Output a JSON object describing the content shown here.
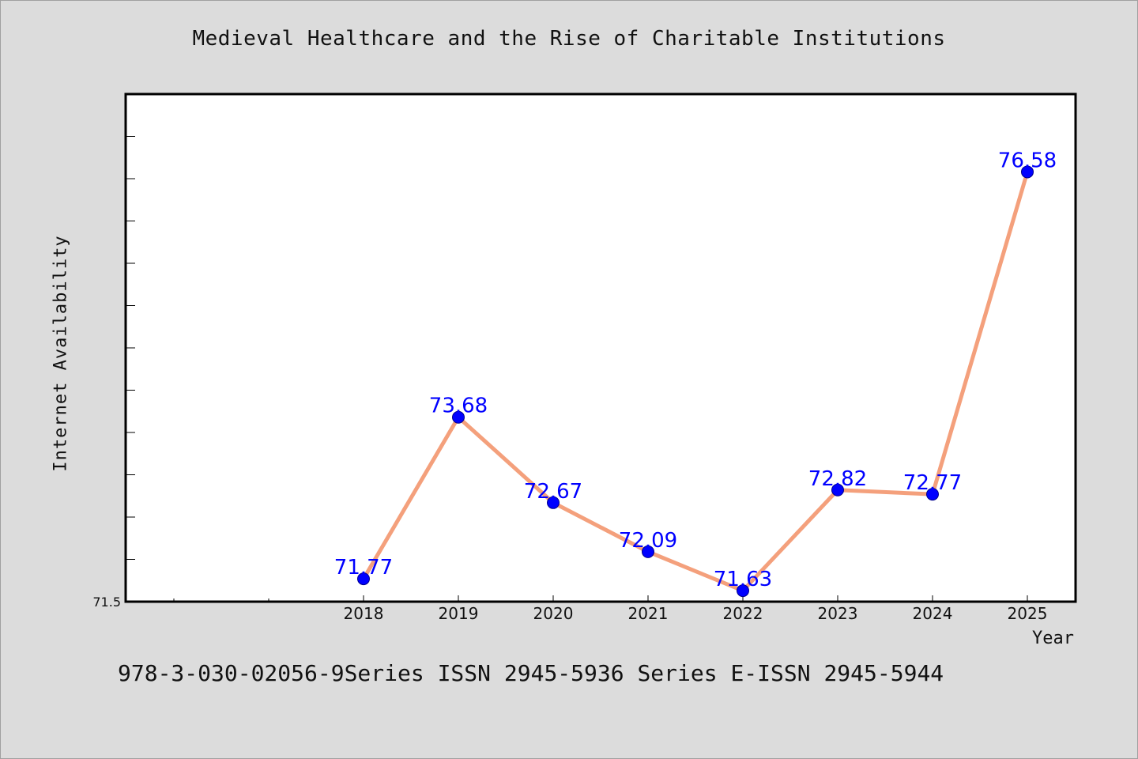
{
  "chart_data": {
    "type": "line",
    "title": "Medieval Healthcare and the Rise of Charitable Institutions",
    "xlabel": "Year",
    "ylabel": "Internet Availability",
    "categories": [
      "2018",
      "2019",
      "2020",
      "2021",
      "2022",
      "2023",
      "2024",
      "2025"
    ],
    "series": [
      {
        "values": [
          71.77,
          73.68,
          72.67,
          72.09,
          71.63,
          72.82,
          72.77,
          76.58
        ],
        "labels": [
          "71.77",
          "73.68",
          "72.67",
          "72.09",
          "71.63",
          "72.82",
          "72.77",
          "76.58"
        ]
      }
    ],
    "ylim": [
      71.5,
      77.5
    ],
    "y_tick_labels": [
      "71.5"
    ],
    "grid": false,
    "legend": "none",
    "colors": {
      "line": "#f4a07c",
      "marker": "#0000ff",
      "data_label": "#0000ff",
      "plot_background": "#ffffff",
      "page_background": "#dcdcdc"
    }
  },
  "footer": {
    "text": "978-3-030-02056-9Series ISSN 2945-5936 Series E-ISSN 2945-5944"
  }
}
